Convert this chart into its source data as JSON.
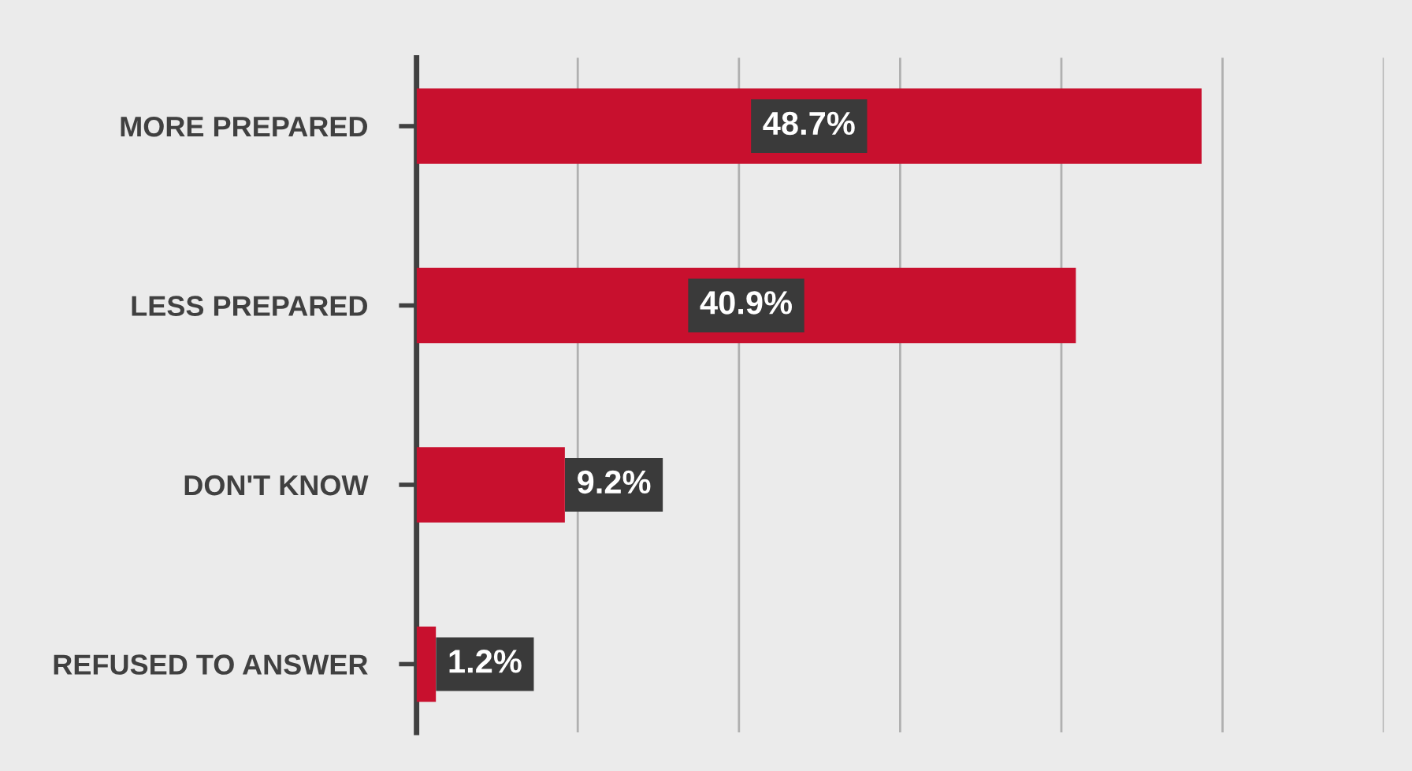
{
  "chart_data": {
    "type": "bar",
    "orientation": "horizontal",
    "categories": [
      "MORE PREPARED",
      "LESS PREPARED",
      "DON'T KNOW",
      "REFUSED TO ANSWER"
    ],
    "values": [
      48.7,
      40.9,
      9.2,
      1.2
    ],
    "color": "#c8102e",
    "value_labels": [
      "48.7%",
      "40.9%",
      "9.2%",
      "1.2%"
    ],
    "xlim": [
      0,
      60
    ],
    "xticks": [
      {
        "value": 0,
        "label": null
      },
      {
        "value": 10,
        "label": null
      },
      {
        "value": 20,
        "label": null
      },
      {
        "value": 30,
        "label": null
      },
      {
        "value": 40,
        "label": null
      },
      {
        "value": 50,
        "label": null
      },
      {
        "value": 60,
        "label": null
      }
    ],
    "grid": "x",
    "tick_labels": "y"
  }
}
